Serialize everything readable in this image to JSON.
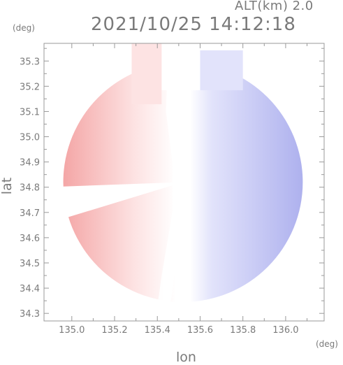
{
  "header": {
    "altitude_label": "ALT(km) 2.0",
    "timestamp": "2021/10/25 14:12:18"
  },
  "colors": {
    "positive": "#f4a6a6",
    "positive_light": "#fde3e3",
    "neutral": "#ffffff",
    "negative_light": "#e2e3fb",
    "negative": "#aeb1ee",
    "tick": "#999999"
  },
  "chart_data": {
    "type": "heatmap",
    "title": "2021/10/25 14:12:18",
    "xlabel": "lon",
    "ylabel": "lat",
    "x_unit": "(deg)",
    "y_unit": "(deg)",
    "xlim": [
      134.87,
      136.18
    ],
    "ylim": [
      34.27,
      35.37
    ],
    "x_ticks": [
      135.0,
      135.2,
      135.4,
      135.6,
      135.8,
      136.0
    ],
    "x_tick_labels": [
      "135.0",
      "135.2",
      "135.4",
      "135.6",
      "135.8",
      "136.0"
    ],
    "y_ticks": [
      34.3,
      34.4,
      34.5,
      34.6,
      34.7,
      34.8,
      34.9,
      35.0,
      35.1,
      35.2,
      35.3
    ],
    "y_tick_labels": [
      "34.3",
      "34.4",
      "34.5",
      "34.6",
      "34.7",
      "34.8",
      "34.9",
      "35.0",
      "35.1",
      "35.2",
      "35.3"
    ],
    "radar_center": [
      135.52,
      34.82
    ],
    "radar_radius_deg": 0.56,
    "zero_line": [
      [
        135.48,
        35.37
      ],
      [
        135.47,
        35.1
      ],
      [
        135.5,
        34.9
      ],
      [
        135.5,
        34.7
      ],
      [
        135.45,
        34.45
      ],
      [
        135.42,
        34.27
      ]
    ],
    "blank_wedge": [
      [
        135.52,
        34.82
      ],
      [
        134.87,
        34.8
      ],
      [
        134.87,
        34.73
      ],
      [
        134.9,
        34.66
      ]
    ],
    "grid": false
  }
}
